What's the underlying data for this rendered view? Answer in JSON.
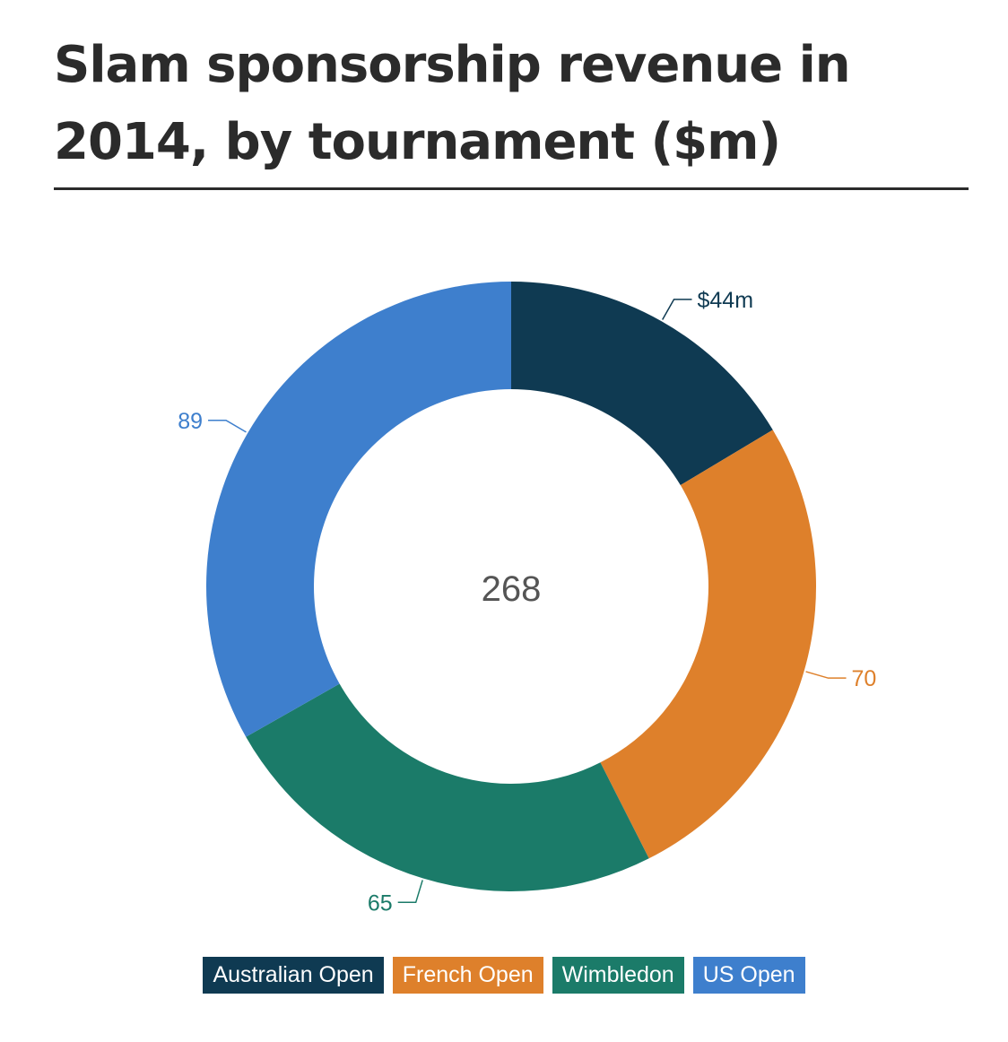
{
  "title": "Slam sponsorship revenue in 2014, by tournament ($m)",
  "chart_data": {
    "type": "pie",
    "variant": "donut",
    "title": "Slam sponsorship revenue in 2014, by tournament ($m)",
    "center_label": "268",
    "start_angle_deg": 0,
    "direction": "clockwise",
    "legend_position": "bottom-center",
    "slices": [
      {
        "name": "Australian Open",
        "value": 44,
        "label": "$44m",
        "color": "#0f3a52"
      },
      {
        "name": "French Open",
        "value": 70,
        "label": "70",
        "color": "#de802b"
      },
      {
        "name": "Wimbledon",
        "value": 65,
        "label": "65",
        "color": "#1b7b69"
      },
      {
        "name": "US Open",
        "value": 89,
        "label": "89",
        "color": "#3e7fcd"
      }
    ]
  }
}
